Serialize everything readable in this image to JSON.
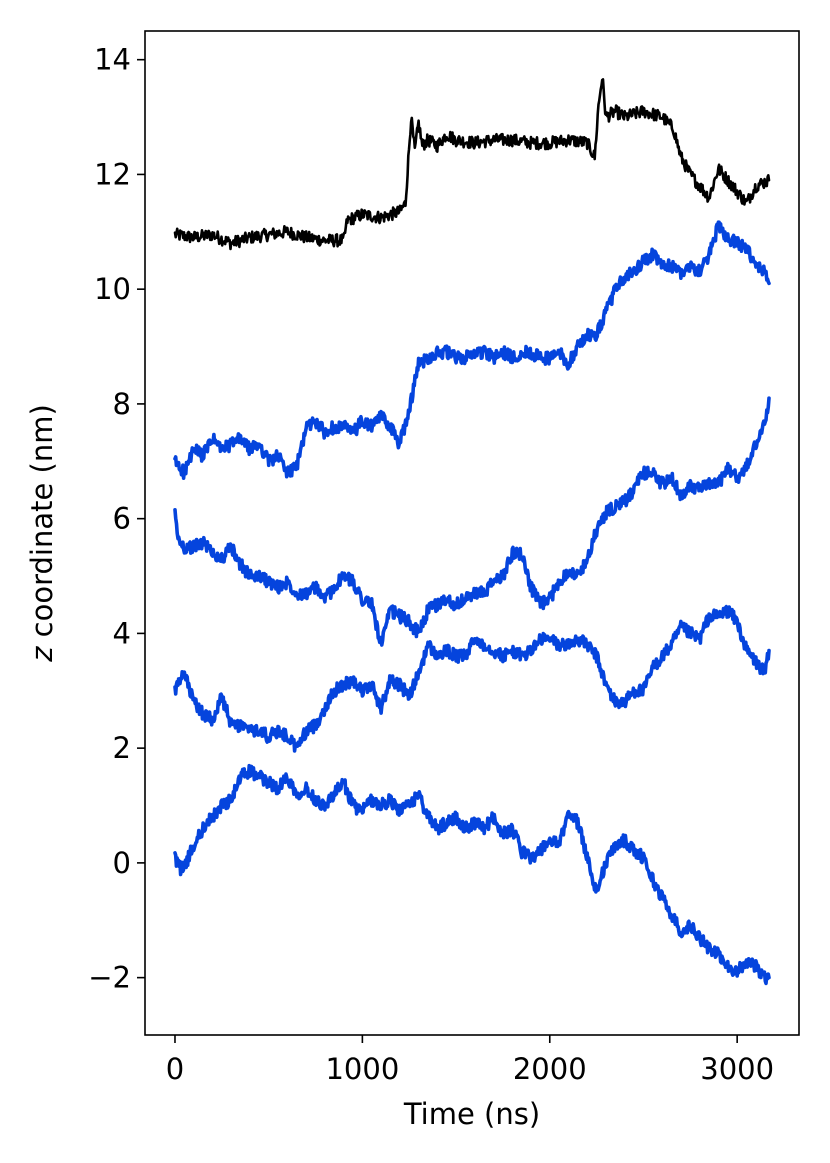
{
  "chart_data": {
    "type": "line",
    "xlabel": "Time (ns)",
    "ylabel_var": "z",
    "ylabel_rest": " coordinate (nm)",
    "xlim": [
      -160,
      3330
    ],
    "ylim": [
      -3.0,
      14.5
    ],
    "xticks": [
      0,
      1000,
      2000,
      3000
    ],
    "xtick_labels": [
      "0",
      "1000",
      "2000",
      "3000"
    ],
    "yticks": [
      -2,
      0,
      2,
      4,
      6,
      8,
      10,
      12,
      14
    ],
    "ytick_labels": [
      "−2",
      "0",
      "2",
      "4",
      "6",
      "8",
      "10",
      "12",
      "14"
    ],
    "grid": false,
    "series": [
      {
        "color": "#000000",
        "x": [
          0,
          100,
          200,
          300,
          400,
          500,
          600,
          700,
          800,
          900,
          920,
          1000,
          1100,
          1200,
          1230,
          1260,
          1280,
          1300,
          1320,
          1350,
          1400,
          1450,
          1500,
          1600,
          1700,
          1800,
          1900,
          2000,
          2100,
          2200,
          2240,
          2260,
          2280,
          2300,
          2350,
          2400,
          2500,
          2600,
          2660,
          2700,
          2750,
          2800,
          2850,
          2900,
          2950,
          3000,
          3050,
          3100,
          3170
        ],
        "y": [
          10.95,
          10.9,
          10.95,
          10.8,
          10.9,
          10.95,
          11.0,
          10.9,
          10.85,
          10.85,
          11.2,
          11.3,
          11.25,
          11.35,
          11.5,
          13.0,
          12.4,
          12.9,
          12.5,
          12.6,
          12.5,
          12.7,
          12.6,
          12.55,
          12.6,
          12.6,
          12.55,
          12.55,
          12.6,
          12.55,
          12.3,
          13.2,
          13.7,
          13.0,
          13.1,
          13.0,
          13.1,
          13.0,
          12.8,
          12.3,
          12.0,
          11.8,
          11.6,
          12.1,
          11.9,
          11.7,
          11.5,
          11.8,
          11.9
        ]
      },
      {
        "color": "#0544dd",
        "x": [
          0,
          50,
          100,
          150,
          200,
          250,
          300,
          350,
          400,
          450,
          500,
          550,
          600,
          650,
          700,
          750,
          800,
          850,
          900,
          950,
          1000,
          1050,
          1100,
          1150,
          1200,
          1250,
          1300,
          1350,
          1400,
          1450,
          1500,
          1550,
          1600,
          1650,
          1700,
          1750,
          1800,
          1850,
          1900,
          1950,
          2000,
          2050,
          2100,
          2150,
          2200,
          2250,
          2300,
          2350,
          2400,
          2450,
          2500,
          2550,
          2600,
          2650,
          2700,
          2750,
          2800,
          2850,
          2900,
          2950,
          3000,
          3050,
          3100,
          3150,
          3170
        ],
        "y": [
          7.0,
          6.8,
          7.2,
          7.1,
          7.4,
          7.2,
          7.3,
          7.4,
          7.2,
          7.3,
          7.0,
          7.1,
          6.8,
          6.9,
          7.6,
          7.7,
          7.5,
          7.6,
          7.6,
          7.5,
          7.7,
          7.6,
          7.8,
          7.6,
          7.3,
          7.9,
          8.7,
          8.8,
          8.9,
          8.9,
          8.8,
          8.8,
          8.9,
          8.9,
          8.8,
          8.9,
          8.8,
          8.9,
          8.9,
          8.8,
          8.8,
          8.9,
          8.7,
          9.0,
          9.2,
          9.2,
          9.6,
          10.0,
          10.2,
          10.3,
          10.5,
          10.6,
          10.4,
          10.4,
          10.3,
          10.4,
          10.3,
          10.6,
          11.1,
          10.9,
          10.8,
          10.7,
          10.4,
          10.3,
          10.1
        ]
      },
      {
        "color": "#0544dd",
        "x": [
          0,
          20,
          50,
          100,
          150,
          200,
          250,
          300,
          350,
          400,
          450,
          500,
          550,
          600,
          650,
          700,
          750,
          800,
          850,
          900,
          950,
          1000,
          1050,
          1100,
          1150,
          1200,
          1250,
          1300,
          1350,
          1400,
          1450,
          1500,
          1550,
          1600,
          1650,
          1700,
          1750,
          1800,
          1850,
          1900,
          1950,
          2000,
          2050,
          2100,
          2150,
          2200,
          2250,
          2300,
          2350,
          2400,
          2450,
          2500,
          2550,
          2600,
          2650,
          2700,
          2750,
          2800,
          2850,
          2900,
          2950,
          3000,
          3050,
          3100,
          3150,
          3170
        ],
        "y": [
          6.1,
          5.6,
          5.5,
          5.5,
          5.6,
          5.4,
          5.3,
          5.5,
          5.2,
          5.0,
          5.0,
          4.9,
          4.8,
          4.9,
          4.7,
          4.7,
          4.8,
          4.6,
          4.8,
          5.0,
          4.9,
          4.6,
          4.5,
          3.8,
          4.4,
          4.3,
          4.2,
          4.0,
          4.4,
          4.5,
          4.6,
          4.5,
          4.6,
          4.7,
          4.7,
          4.9,
          5.0,
          5.4,
          5.4,
          4.8,
          4.5,
          4.6,
          4.9,
          5.1,
          5.0,
          5.3,
          5.8,
          6.1,
          6.2,
          6.3,
          6.5,
          6.8,
          6.8,
          6.6,
          6.7,
          6.4,
          6.6,
          6.5,
          6.6,
          6.6,
          6.9,
          6.7,
          6.9,
          7.3,
          7.7,
          8.1
        ]
      },
      {
        "color": "#0544dd",
        "x": [
          0,
          50,
          100,
          150,
          200,
          250,
          300,
          350,
          400,
          450,
          500,
          550,
          600,
          650,
          700,
          750,
          800,
          850,
          900,
          950,
          1000,
          1050,
          1100,
          1150,
          1200,
          1250,
          1300,
          1350,
          1400,
          1450,
          1500,
          1550,
          1600,
          1650,
          1700,
          1750,
          1800,
          1850,
          1900,
          1950,
          2000,
          2050,
          2100,
          2150,
          2200,
          2250,
          2300,
          2350,
          2400,
          2450,
          2500,
          2550,
          2600,
          2650,
          2700,
          2750,
          2800,
          2850,
          2900,
          2950,
          3000,
          3050,
          3100,
          3150,
          3170
        ],
        "y": [
          3.0,
          3.3,
          2.8,
          2.6,
          2.5,
          2.9,
          2.4,
          2.4,
          2.3,
          2.3,
          2.2,
          2.3,
          2.2,
          2.0,
          2.3,
          2.4,
          2.7,
          3.0,
          3.1,
          3.2,
          3.0,
          3.1,
          2.7,
          3.2,
          3.1,
          2.9,
          3.3,
          3.8,
          3.6,
          3.7,
          3.6,
          3.6,
          3.9,
          3.8,
          3.7,
          3.6,
          3.7,
          3.6,
          3.7,
          3.9,
          3.9,
          3.8,
          3.8,
          3.9,
          3.8,
          3.6,
          3.1,
          2.8,
          2.8,
          3.0,
          3.0,
          3.4,
          3.6,
          3.8,
          4.1,
          4.0,
          3.9,
          4.3,
          4.3,
          4.4,
          4.2,
          3.7,
          3.5,
          3.3,
          3.7
        ]
      },
      {
        "color": "#0544dd",
        "x": [
          0,
          30,
          60,
          100,
          150,
          200,
          250,
          300,
          350,
          400,
          450,
          500,
          550,
          600,
          650,
          700,
          750,
          800,
          850,
          900,
          950,
          1000,
          1050,
          1100,
          1150,
          1200,
          1250,
          1300,
          1350,
          1400,
          1450,
          1500,
          1550,
          1600,
          1650,
          1700,
          1750,
          1800,
          1850,
          1900,
          1950,
          2000,
          2050,
          2100,
          2150,
          2200,
          2250,
          2300,
          2350,
          2400,
          2450,
          2500,
          2550,
          2600,
          2650,
          2700,
          2750,
          2800,
          2850,
          2900,
          2950,
          3000,
          3050,
          3100,
          3150,
          3170
        ],
        "y": [
          0.1,
          -0.1,
          0.0,
          0.3,
          0.6,
          0.8,
          1.0,
          1.1,
          1.5,
          1.6,
          1.5,
          1.4,
          1.3,
          1.5,
          1.2,
          1.3,
          1.1,
          1.0,
          1.2,
          1.4,
          1.0,
          0.9,
          1.1,
          1.0,
          1.1,
          0.9,
          1.0,
          1.2,
          0.8,
          0.6,
          0.7,
          0.8,
          0.6,
          0.7,
          0.6,
          0.8,
          0.5,
          0.6,
          0.2,
          0.1,
          0.2,
          0.4,
          0.3,
          0.9,
          0.7,
          0.1,
          -0.5,
          0.0,
          0.3,
          0.4,
          0.2,
          0.1,
          -0.3,
          -0.6,
          -0.9,
          -1.2,
          -1.1,
          -1.3,
          -1.5,
          -1.6,
          -1.8,
          -1.9,
          -1.7,
          -1.8,
          -2.0,
          -2.0
        ]
      }
    ]
  }
}
